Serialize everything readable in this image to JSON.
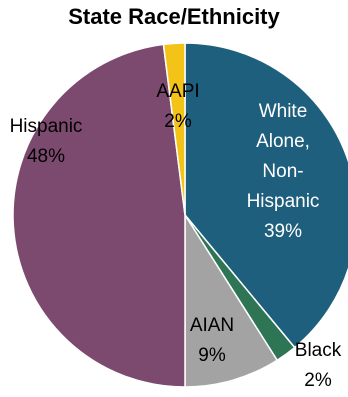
{
  "chart_data": {
    "type": "pie",
    "title": "State Race/Ethnicity",
    "slices": [
      {
        "name": "White Alone, Non-Hispanic",
        "label_lines": [
          "White",
          "Alone,",
          "Non-",
          "Hispanic"
        ],
        "pct_label": "39%",
        "value": 39,
        "color": "#1f5f7e",
        "label_color": "#ffffff"
      },
      {
        "name": "Black",
        "label_lines": [
          "Black"
        ],
        "pct_label": "2%",
        "value": 2,
        "color": "#2e7556",
        "label_color": "#000000"
      },
      {
        "name": "AIAN",
        "label_lines": [
          "AIAN"
        ],
        "pct_label": "9%",
        "value": 9,
        "color": "#a3a3a3",
        "label_color": "#000000"
      },
      {
        "name": "Hispanic",
        "label_lines": [
          "Hispanic"
        ],
        "pct_label": "48%",
        "value": 48,
        "color": "#7c4a6e",
        "label_color": "#000000"
      },
      {
        "name": "AAPI",
        "label_lines": [
          "AAPI"
        ],
        "pct_label": "2%",
        "value": 2,
        "color": "#f4c318",
        "label_color": "#000000"
      }
    ]
  }
}
